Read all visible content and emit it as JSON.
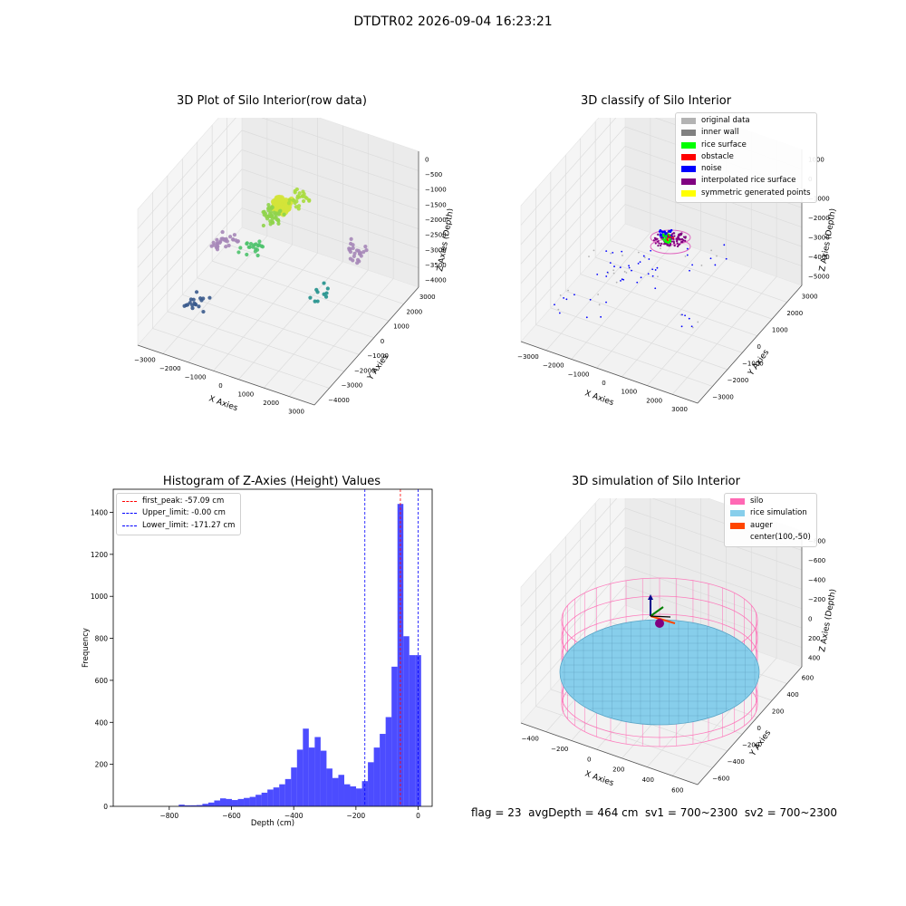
{
  "figure": {
    "suptitle": "DTDTR02 2026-09-04 16:23:21",
    "status_text": "flag = 23  avgDepth = 464 cm  sv1 = 700~2300  sv2 = 700~2300"
  },
  "chart_data": [
    {
      "type": "scatter",
      "title": "3D Plot of Silo Interior(row data)",
      "xlabel": "X Axies",
      "ylabel": "Y Axies",
      "zlabel": "Z Axies (Depth)",
      "xticks": [
        "−3000",
        "−2000",
        "−1000",
        "0",
        "1000",
        "2000",
        "3000"
      ],
      "yticks": [
        "−4000",
        "−3000",
        "−2000",
        "−1000",
        "0",
        "1000",
        "2000",
        "3000"
      ],
      "zticks": [
        "0",
        "−500",
        "−1000",
        "−1500",
        "−2000",
        "−2500",
        "−3000",
        "−3500",
        "−4000"
      ],
      "colormap": "viridis",
      "grid": true,
      "point_clusters": [
        {
          "x": 0,
          "y": -200,
          "z": -750,
          "count": 120,
          "color": "#d4e33a"
        },
        {
          "x": -300,
          "y": -400,
          "z": -1100,
          "count": 40,
          "color": "#8fd44a"
        },
        {
          "x": 200,
          "y": 600,
          "z": -900,
          "count": 25,
          "color": "#a9dc3e"
        },
        {
          "x": -1000,
          "y": -600,
          "z": -2200,
          "count": 20,
          "color": "#4cc26c"
        },
        {
          "x": -2200,
          "y": -300,
          "z": -2500,
          "count": 30,
          "color": "#a687b8"
        },
        {
          "x": 2000,
          "y": 1500,
          "z": -2500,
          "count": 25,
          "color": "#a687b8"
        },
        {
          "x": -2000,
          "y": -2800,
          "z": -3200,
          "count": 18,
          "color": "#3a5a8c"
        },
        {
          "x": 1800,
          "y": -500,
          "z": -3000,
          "count": 10,
          "color": "#21918c"
        }
      ]
    },
    {
      "type": "scatter",
      "title": "3D classify of Silo Interior",
      "xlabel": "X Axies",
      "ylabel": "Y Axies",
      "zlabel": "Z Axies (Depth)",
      "xticks": [
        "−3000",
        "−2000",
        "−1000",
        "0",
        "1000",
        "2000",
        "3000"
      ],
      "yticks": [
        "−3000",
        "−2000",
        "−1000",
        "0",
        "1000",
        "2000",
        "3000"
      ],
      "zticks": [
        "1000",
        "0",
        "−1000",
        "−2000",
        "−3000",
        "−4000",
        "−5000"
      ],
      "legend": [
        {
          "label": "original data",
          "color": "#b3b3b3"
        },
        {
          "label": "inner wall",
          "color": "#808080"
        },
        {
          "label": "rice surface",
          "color": "#00ff00"
        },
        {
          "label": "obstacle",
          "color": "#ff0000"
        },
        {
          "label": "noise",
          "color": "#0000ff"
        },
        {
          "label": "interpolated rice surface",
          "color": "#800080"
        },
        {
          "label": "symmetric generated points",
          "color": "#ffff00"
        }
      ],
      "legend_position": "upper right",
      "grid": true
    },
    {
      "type": "bar",
      "title": "Histogram of Z-Axies (Height) Values",
      "xlabel": "Depth (cm)",
      "ylabel": "Frequency",
      "xlim": [
        -980,
        45
      ],
      "ylim": [
        0,
        1510
      ],
      "xticks": [
        -800,
        -600,
        -400,
        -200,
        0
      ],
      "xtick_labels": [
        "−800",
        "−600",
        "−400",
        "−200",
        "0"
      ],
      "yticks": [
        0,
        200,
        400,
        600,
        800,
        1000,
        1200,
        1400
      ],
      "bar_color": "#0000ff",
      "bin_width": 19,
      "bin_centers": [
        -760,
        -741,
        -722,
        -703,
        -684,
        -665,
        -646,
        -627,
        -608,
        -589,
        -570,
        -551,
        -532,
        -513,
        -494,
        -475,
        -456,
        -437,
        -418,
        -399,
        -380,
        -361,
        -342,
        -323,
        -304,
        -285,
        -266,
        -247,
        -228,
        -209,
        -190,
        -171,
        -152,
        -133,
        -114,
        -95,
        -76,
        -57,
        -38,
        -19,
        0
      ],
      "counts": [
        8,
        5,
        5,
        6,
        12,
        18,
        28,
        38,
        35,
        30,
        35,
        40,
        45,
        55,
        65,
        80,
        90,
        105,
        130,
        185,
        270,
        370,
        280,
        330,
        265,
        180,
        135,
        150,
        105,
        95,
        85,
        120,
        210,
        280,
        345,
        425,
        665,
        1440,
        810,
        720,
        720
      ],
      "vlines": [
        {
          "x": -57.09,
          "label": "first_peak: -57.09 cm",
          "color": "#ff0000"
        },
        {
          "x": -0.0,
          "label": "Upper_limit: -0.00 cm",
          "color": "#0000ff"
        },
        {
          "x": -171.27,
          "label": "Lower_limit: -171.27 cm",
          "color": "#0000ff"
        }
      ],
      "legend_position": "upper left"
    },
    {
      "type": "surface",
      "title": "3D simulation of Silo Interior",
      "xlabel": "X Axies",
      "ylabel": "Y Axies",
      "zlabel": "Z Axies (Depth)",
      "xticks": [
        "−400",
        "−200",
        "0",
        "200",
        "400",
        "600"
      ],
      "yticks": [
        "−600",
        "−400",
        "−200",
        "0",
        "200",
        "400",
        "600"
      ],
      "zticks": [
        "400",
        "200",
        "0",
        "−200",
        "−400",
        "−600",
        "−800"
      ],
      "legend": [
        {
          "label": "silo",
          "color": "#ff69b4"
        },
        {
          "label": "rice simulation",
          "color": "#87ceeb"
        },
        {
          "label": "auger",
          "color": "#ff4500"
        },
        {
          "label": "center(100,-50)",
          "color": ""
        }
      ],
      "legend_position": "upper right",
      "grid": true
    }
  ]
}
